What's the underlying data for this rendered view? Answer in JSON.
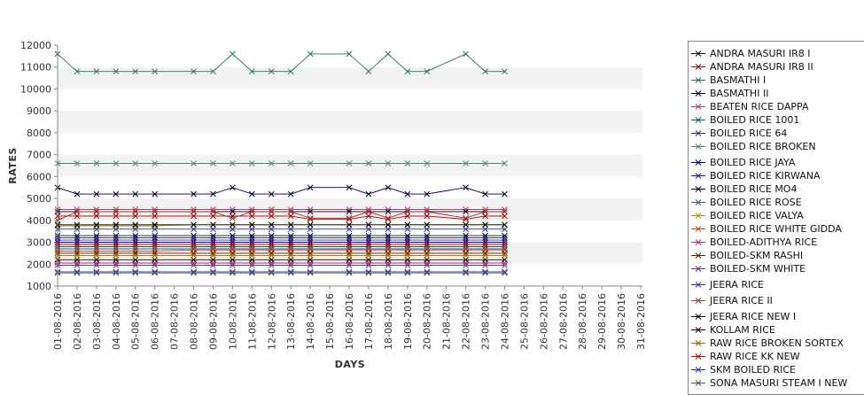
{
  "chart_data": {
    "type": "line",
    "title": "",
    "xlabel": "DAYS",
    "ylabel": "RATES",
    "ylim": [
      1000,
      12000
    ],
    "y_ticks": [
      1000,
      2000,
      3000,
      4000,
      5000,
      6000,
      7000,
      8000,
      9000,
      10000,
      11000,
      12000
    ],
    "grid": "alternating horizontal bands",
    "legend_position": "right",
    "x_ticks": [
      "01-08-2016",
      "02-08-2016",
      "03-08-2016",
      "04-08-2016",
      "05-08-2016",
      "06-08-2016",
      "07-08-2016",
      "08-08-2016",
      "09-08-2016",
      "10-08-2016",
      "11-08-2016",
      "12-08-2016",
      "13-08-2016",
      "14-08-2016",
      "15-08-2016",
      "16-08-2016",
      "17-08-2016",
      "18-08-2016",
      "19-08-2016",
      "20-08-2016",
      "21-08-2016",
      "22-08-2016",
      "23-08-2016",
      "24-08-2016",
      "25-08-2016",
      "26-08-2016",
      "27-08-2016",
      "28-08-2016",
      "29-08-2016",
      "30-08-2016",
      "31-08-2016"
    ],
    "x": [
      "01-08-2016",
      "02-08-2016",
      "03-08-2016",
      "04-08-2016",
      "05-08-2016",
      "06-08-2016",
      "08-08-2016",
      "09-08-2016",
      "10-08-2016",
      "11-08-2016",
      "12-08-2016",
      "13-08-2016",
      "14-08-2016",
      "16-08-2016",
      "17-08-2016",
      "18-08-2016",
      "19-08-2016",
      "20-08-2016",
      "22-08-2016",
      "23-08-2016",
      "24-08-2016"
    ],
    "series": [
      {
        "name": "ANDRA MASURI IR8 I",
        "color": "#111111",
        "values": [
          3300,
          3300,
          3300,
          3300,
          3300,
          3300,
          3300,
          3300,
          3300,
          3300,
          3300,
          3300,
          3300,
          3300,
          3300,
          3300,
          3300,
          3300,
          3300,
          3300,
          3300
        ]
      },
      {
        "name": "ANDRA MASURI IR8 II",
        "color": "#b00000",
        "values": [
          4200,
          4200,
          4200,
          4200,
          4200,
          4200,
          4200,
          4200,
          4200,
          4200,
          4200,
          4200,
          4050,
          4050,
          4200,
          4050,
          4200,
          4200,
          4050,
          4200,
          4200
        ]
      },
      {
        "name": "BASMATHI I",
        "color": "#2a6f5a",
        "values": [
          11600,
          10800,
          10800,
          10800,
          10800,
          10800,
          10800,
          10800,
          11600,
          10800,
          10800,
          10800,
          11600,
          11600,
          10800,
          11600,
          10800,
          10800,
          11600,
          10800,
          10800
        ]
      },
      {
        "name": "BASMATHI II",
        "color": "#000033",
        "values": [
          5500,
          5200,
          5200,
          5200,
          5200,
          5200,
          5200,
          5200,
          5500,
          5200,
          5200,
          5200,
          5500,
          5500,
          5200,
          5500,
          5200,
          5200,
          5500,
          5200,
          5200
        ]
      },
      {
        "name": "BEATEN RICE DAPPA",
        "color": "#cc3366",
        "values": [
          4500,
          4500,
          4500,
          4500,
          4500,
          4500,
          4500,
          4500,
          4500,
          4500,
          4500,
          4500,
          4500,
          4500,
          4500,
          4500,
          4500,
          4500,
          4500,
          4500,
          4500
        ]
      },
      {
        "name": "BOILED RICE 1001",
        "color": "#006666",
        "values": [
          2800,
          2800,
          2800,
          2800,
          2800,
          2800,
          2800,
          2800,
          2800,
          2800,
          2800,
          2800,
          2800,
          2800,
          2800,
          2800,
          2800,
          2800,
          2800,
          2800,
          2800
        ]
      },
      {
        "name": "BOILED RICE 64",
        "color": "#333366",
        "values": [
          3100,
          3100,
          3100,
          3100,
          3100,
          3100,
          3100,
          3100,
          3100,
          3100,
          3100,
          3100,
          3100,
          3100,
          3100,
          3100,
          3100,
          3100,
          3100,
          3100,
          3100
        ]
      },
      {
        "name": "BOILED RICE BROKEN",
        "color": "#4a8a6a",
        "values": [
          6600,
          6600,
          6600,
          6600,
          6600,
          6600,
          6600,
          6600,
          6600,
          6600,
          6600,
          6600,
          6600,
          6600,
          6600,
          6600,
          6600,
          6600,
          6600,
          6600,
          6600
        ]
      },
      {
        "name": "BOILED RICE JAYA",
        "color": "#0000aa",
        "values": [
          3000,
          3000,
          3000,
          3000,
          3000,
          3000,
          3000,
          3000,
          3000,
          3000,
          3000,
          3000,
          3000,
          3000,
          3000,
          3000,
          3000,
          3000,
          3000,
          3000,
          3000
        ]
      },
      {
        "name": "BOILED RICE KIRWANA",
        "color": "#1a1a8a",
        "values": [
          3200,
          3200,
          3200,
          3200,
          3200,
          3200,
          3200,
          3200,
          3200,
          3200,
          3200,
          3200,
          3200,
          3200,
          3200,
          3200,
          3200,
          3200,
          3200,
          3200,
          3200
        ]
      },
      {
        "name": "BOILED RICE MO4",
        "color": "#000022",
        "values": [
          4400,
          4400,
          4400,
          4400,
          4400,
          4400,
          4400,
          4400,
          4400,
          4400,
          4400,
          4400,
          4400,
          4400,
          4400,
          4400,
          4400,
          4400,
          4400,
          4400,
          4400
        ]
      },
      {
        "name": "BOILED RICE ROSE",
        "color": "#3a5a8a",
        "values": [
          2700,
          2700,
          2700,
          2700,
          2700,
          2700,
          2700,
          2700,
          2700,
          2700,
          2700,
          2700,
          2700,
          2700,
          2700,
          2700,
          2700,
          2700,
          2700,
          2700,
          2700
        ]
      },
      {
        "name": "BOILED RICE VALYA",
        "color": "#999900",
        "values": [
          3750,
          3750,
          3750,
          3750,
          3750,
          3750,
          3800,
          3800,
          3800,
          3800,
          3800,
          3800,
          3800,
          3800,
          3800,
          3800,
          3800,
          3800,
          3800,
          3800,
          3800
        ]
      },
      {
        "name": "BOILED RICE WHITE GIDDA",
        "color": "#cc4400",
        "values": [
          2600,
          2600,
          2600,
          2600,
          2600,
          2600,
          2650,
          2650,
          2650,
          2650,
          2650,
          2650,
          2650,
          2650,
          2650,
          2650,
          2650,
          2650,
          2650,
          2650,
          2650
        ]
      },
      {
        "name": "BOILED-ADITHYA RICE",
        "color": "#aa3377",
        "values": [
          2050,
          2050,
          2050,
          2050,
          2050,
          2050,
          2050,
          2050,
          2050,
          2050,
          2050,
          2050,
          2050,
          2050,
          2050,
          2050,
          2050,
          2050,
          2050,
          2050,
          2050
        ]
      },
      {
        "name": "BOILED-SKM RASHI",
        "color": "#552200",
        "values": [
          2500,
          2500,
          2500,
          2500,
          2500,
          2500,
          2500,
          2500,
          2500,
          2500,
          2500,
          2500,
          2500,
          2500,
          2500,
          2500,
          2500,
          2500,
          2500,
          2500,
          2500
        ]
      },
      {
        "name": "BOILED-SKM WHITE",
        "color": "#663399",
        "values": [
          1950,
          1950,
          1950,
          1950,
          1950,
          1950,
          1950,
          1950,
          1950,
          1950,
          1950,
          1950,
          1950,
          1950,
          1950,
          1950,
          1950,
          1950,
          1950,
          1950,
          1950
        ]
      },
      {
        "name": "JEERA RICE",
        "color": "#333399",
        "values": [
          3600,
          3600,
          3600,
          3600,
          3600,
          3600,
          3600,
          3600,
          3600,
          3600,
          3600,
          3600,
          3600,
          3600,
          3600,
          3600,
          3600,
          3600,
          3600,
          3600,
          3600
        ]
      },
      {
        "name": "JEERA RICE II",
        "color": "#993333",
        "values": [
          4000,
          4400,
          4400,
          4400,
          4400,
          4400,
          4400,
          4400,
          4100,
          4400,
          4400,
          4400,
          4100,
          4100,
          4400,
          4100,
          4400,
          4400,
          4100,
          4400,
          4400
        ]
      },
      {
        "name": "JEERA RICE NEW I",
        "color": "#000000",
        "values": [
          3800,
          3800,
          3800,
          3800,
          3800,
          3800,
          3800,
          3800,
          3800,
          3800,
          3800,
          3800,
          3800,
          3800,
          3800,
          3800,
          3800,
          3800,
          3800,
          3800,
          3800
        ]
      },
      {
        "name": "KOLLAM RICE",
        "color": "#220000",
        "values": [
          2200,
          2200,
          2200,
          2200,
          2200,
          2200,
          2200,
          2200,
          2200,
          2200,
          2200,
          2200,
          2200,
          2200,
          2200,
          2200,
          2200,
          2200,
          2200,
          2200,
          2200
        ]
      },
      {
        "name": "RAW RICE BROKEN SORTEX",
        "color": "#aa6600",
        "values": [
          2400,
          2400,
          2400,
          2400,
          2400,
          2400,
          2400,
          2400,
          2400,
          2400,
          2400,
          2400,
          2400,
          2400,
          2400,
          2400,
          2400,
          2400,
          2400,
          2400,
          2400
        ]
      },
      {
        "name": "RAW RICE KK NEW",
        "color": "#cc0000",
        "values": [
          2900,
          2900,
          2900,
          2900,
          2900,
          2900,
          2900,
          2900,
          2900,
          2900,
          2900,
          2900,
          2900,
          2900,
          2900,
          2900,
          2900,
          2900,
          2900,
          2900,
          2900
        ]
      },
      {
        "name": "SKM BOILED RICE",
        "color": "#2233aa",
        "values": [
          1650,
          1650,
          1650,
          1650,
          1650,
          1650,
          1650,
          1650,
          1650,
          1650,
          1650,
          1650,
          1650,
          1650,
          1650,
          1650,
          1650,
          1650,
          1650,
          1650,
          1650
        ]
      },
      {
        "name": "SONA MASURI STEAM I NEW",
        "color": "#555555",
        "values": [
          1600,
          1600,
          1600,
          1600,
          1600,
          1600,
          1600,
          1600,
          1600,
          1600,
          1600,
          1600,
          1600,
          1600,
          1600,
          1600,
          1600,
          1600,
          1600,
          1600,
          1600
        ]
      }
    ]
  }
}
